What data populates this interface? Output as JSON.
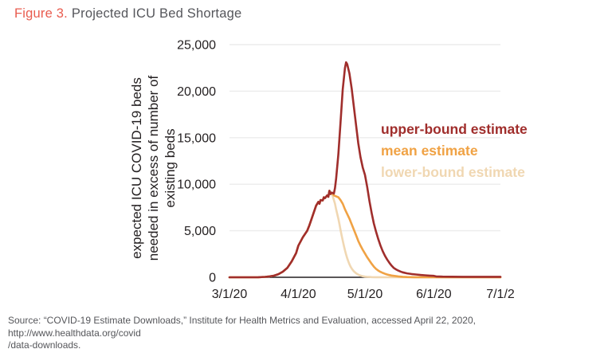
{
  "header": {
    "figure_label": "Figure 3.",
    "title": "Projected ICU Bed Shortage"
  },
  "source": {
    "line1": "Source: “COVID-19 Estimate Downloads,” Institute for Health Metrics and Evaluation, accessed April 22, 2020, http://www.healthdata.org/covid",
    "line2": "/data-downloads."
  },
  "chart_data": {
    "type": "line",
    "title": "Projected ICU Bed Shortage",
    "y_axis_title_lines": [
      "expected ICU COVID-19 beds",
      "needed in excess of number of",
      "existing beds"
    ],
    "xlabel": "",
    "ylabel": "expected ICU COVID-19 beds needed in excess of number of existing beds",
    "x_unit": "days since 3/1/20",
    "xlim_days": [
      0,
      122
    ],
    "ylim": [
      0,
      25000
    ],
    "grid": "horizontal gridlines at each y tick",
    "legend_position": "right-center",
    "gridline_color": "#ECECEC",
    "axis_color": "#231F20",
    "x_ticks": [
      {
        "label": "3/1/20",
        "day": 0
      },
      {
        "label": "4/1/20",
        "day": 31
      },
      {
        "label": "5/1/20",
        "day": 61
      },
      {
        "label": "6/1/20",
        "day": 92
      },
      {
        "label": "7/1/2",
        "day": 122
      }
    ],
    "y_ticks": [
      {
        "label": "0",
        "value": 0
      },
      {
        "label": "5,000",
        "value": 5000
      },
      {
        "label": "10,000",
        "value": 10000
      },
      {
        "label": "15,000",
        "value": 15000
      },
      {
        "label": "20,000",
        "value": 20000
      },
      {
        "label": "25,000",
        "value": 25000
      }
    ],
    "series": [
      {
        "name": "upper-bound estimate",
        "color": "#A02E2C",
        "peak": {
          "approx_date": "4/22/20",
          "value": 23100
        },
        "points": [
          [
            0,
            0
          ],
          [
            6,
            0
          ],
          [
            10,
            0
          ],
          [
            13,
            10
          ],
          [
            16,
            40
          ],
          [
            18,
            90
          ],
          [
            20,
            170
          ],
          [
            22,
            330
          ],
          [
            24,
            600
          ],
          [
            26,
            1000
          ],
          [
            28,
            1700
          ],
          [
            30,
            2600
          ],
          [
            31,
            3400
          ],
          [
            33,
            4300
          ],
          [
            35,
            5000
          ],
          [
            36,
            5600
          ],
          [
            37,
            6300
          ],
          [
            38,
            7000
          ],
          [
            39,
            7700
          ],
          [
            40,
            8100
          ],
          [
            40.5,
            7900
          ],
          [
            41,
            8300
          ],
          [
            42,
            8250
          ],
          [
            42.5,
            8600
          ],
          [
            43,
            8500
          ],
          [
            44,
            8800
          ],
          [
            44.5,
            8650
          ],
          [
            45,
            9300
          ],
          [
            45.5,
            8950
          ],
          [
            46,
            9100
          ],
          [
            47,
            9000
          ],
          [
            47.5,
            9600
          ],
          [
            48,
            10600
          ],
          [
            49,
            13200
          ],
          [
            50,
            16600
          ],
          [
            51,
            20200
          ],
          [
            52,
            22500
          ],
          [
            52.5,
            23100
          ],
          [
            53,
            22900
          ],
          [
            54,
            21900
          ],
          [
            55,
            20300
          ],
          [
            56,
            18300
          ],
          [
            57,
            16300
          ],
          [
            58,
            14400
          ],
          [
            59,
            12900
          ],
          [
            60,
            11800
          ],
          [
            61,
            11000
          ],
          [
            62,
            9700
          ],
          [
            63,
            8200
          ],
          [
            64,
            6900
          ],
          [
            65,
            5800
          ],
          [
            66,
            4900
          ],
          [
            67,
            4100
          ],
          [
            68,
            3400
          ],
          [
            69,
            2800
          ],
          [
            70,
            2300
          ],
          [
            71,
            1900
          ],
          [
            72,
            1550
          ],
          [
            73,
            1250
          ],
          [
            74,
            1000
          ],
          [
            75,
            850
          ],
          [
            76,
            720
          ],
          [
            77,
            620
          ],
          [
            78,
            530
          ],
          [
            80,
            420
          ],
          [
            82,
            350
          ],
          [
            84,
            300
          ],
          [
            86,
            250
          ],
          [
            88,
            210
          ],
          [
            90,
            180
          ],
          [
            92,
            150
          ],
          [
            93,
            90
          ],
          [
            96,
            70
          ],
          [
            100,
            60
          ],
          [
            105,
            55
          ],
          [
            110,
            50
          ],
          [
            116,
            55
          ],
          [
            122,
            50
          ]
        ]
      },
      {
        "name": "mean estimate",
        "color": "#F0A244",
        "peak": {
          "approx_date": "4/15/20",
          "value": 9300
        },
        "points": [
          [
            0,
            0
          ],
          [
            6,
            0
          ],
          [
            10,
            0
          ],
          [
            13,
            10
          ],
          [
            16,
            40
          ],
          [
            18,
            90
          ],
          [
            20,
            170
          ],
          [
            22,
            330
          ],
          [
            24,
            600
          ],
          [
            26,
            1000
          ],
          [
            28,
            1700
          ],
          [
            30,
            2600
          ],
          [
            31,
            3400
          ],
          [
            33,
            4300
          ],
          [
            35,
            5000
          ],
          [
            36,
            5600
          ],
          [
            37,
            6300
          ],
          [
            38,
            7000
          ],
          [
            39,
            7700
          ],
          [
            40,
            8100
          ],
          [
            40.5,
            7900
          ],
          [
            41,
            8300
          ],
          [
            42,
            8250
          ],
          [
            42.5,
            8600
          ],
          [
            43,
            8500
          ],
          [
            44,
            8800
          ],
          [
            44.5,
            8650
          ],
          [
            45,
            9300
          ],
          [
            45.5,
            8950
          ],
          [
            46,
            9100
          ],
          [
            47,
            8800
          ],
          [
            48,
            8700
          ],
          [
            49,
            8600
          ],
          [
            50,
            8300
          ],
          [
            51,
            7900
          ],
          [
            52,
            7300
          ],
          [
            53,
            6800
          ],
          [
            54,
            6300
          ],
          [
            55,
            5700
          ],
          [
            56,
            5100
          ],
          [
            57,
            4500
          ],
          [
            58,
            3900
          ],
          [
            59,
            3400
          ],
          [
            60,
            2950
          ],
          [
            61,
            2550
          ],
          [
            62,
            2150
          ],
          [
            63,
            1800
          ],
          [
            64,
            1450
          ],
          [
            65,
            1150
          ],
          [
            66,
            900
          ],
          [
            67,
            720
          ],
          [
            68,
            580
          ],
          [
            69,
            470
          ],
          [
            70,
            380
          ],
          [
            71,
            300
          ],
          [
            72,
            240
          ],
          [
            73,
            190
          ],
          [
            74,
            150
          ],
          [
            76,
            90
          ],
          [
            78,
            50
          ],
          [
            80,
            25
          ],
          [
            83,
            10
          ],
          [
            86,
            5
          ],
          [
            92,
            0
          ],
          [
            100,
            0
          ],
          [
            110,
            0
          ],
          [
            122,
            0
          ]
        ]
      },
      {
        "name": "lower-bound estimate",
        "color": "#F0D7B2",
        "peak": {
          "approx_date": "4/15/20",
          "value": 9300
        },
        "points": [
          [
            0,
            0
          ],
          [
            6,
            0
          ],
          [
            10,
            0
          ],
          [
            13,
            10
          ],
          [
            16,
            40
          ],
          [
            18,
            90
          ],
          [
            20,
            170
          ],
          [
            22,
            330
          ],
          [
            24,
            600
          ],
          [
            26,
            1000
          ],
          [
            28,
            1700
          ],
          [
            30,
            2600
          ],
          [
            31,
            3400
          ],
          [
            33,
            4300
          ],
          [
            35,
            5000
          ],
          [
            36,
            5600
          ],
          [
            37,
            6300
          ],
          [
            38,
            7000
          ],
          [
            39,
            7700
          ],
          [
            40,
            8100
          ],
          [
            40.5,
            7900
          ],
          [
            41,
            8300
          ],
          [
            42,
            8250
          ],
          [
            42.5,
            8600
          ],
          [
            43,
            8500
          ],
          [
            44,
            8800
          ],
          [
            44.5,
            8650
          ],
          [
            45,
            9300
          ],
          [
            45.5,
            8950
          ],
          [
            46,
            9100
          ],
          [
            46.5,
            8700
          ],
          [
            47,
            8300
          ],
          [
            47.5,
            7900
          ],
          [
            48,
            7300
          ],
          [
            48.5,
            6800
          ],
          [
            49,
            6300
          ],
          [
            49.5,
            5700
          ],
          [
            50,
            5100
          ],
          [
            50.5,
            4500
          ],
          [
            51,
            3950
          ],
          [
            51.5,
            3400
          ],
          [
            52,
            2900
          ],
          [
            52.5,
            2450
          ],
          [
            53,
            2050
          ],
          [
            53.5,
            1700
          ],
          [
            54,
            1400
          ],
          [
            54.5,
            1150
          ],
          [
            55,
            950
          ],
          [
            55.5,
            780
          ],
          [
            56,
            640
          ],
          [
            57,
            430
          ],
          [
            58,
            280
          ],
          [
            59,
            180
          ],
          [
            60,
            110
          ],
          [
            61,
            70
          ],
          [
            62,
            45
          ],
          [
            63,
            30
          ],
          [
            64,
            20
          ],
          [
            66,
            10
          ],
          [
            68,
            5
          ],
          [
            70,
            0
          ],
          [
            80,
            0
          ],
          [
            90,
            0
          ],
          [
            100,
            0
          ],
          [
            110,
            0
          ],
          [
            122,
            0
          ]
        ]
      }
    ]
  }
}
